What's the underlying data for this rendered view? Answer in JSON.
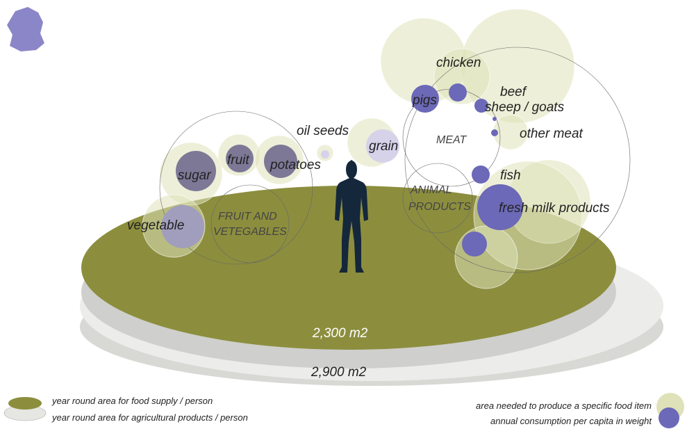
{
  "labels": {
    "chicken": "chicken",
    "pigs": "pigs",
    "beef": "beef",
    "sheep_goats": "sheep / goats",
    "meat": "MEAT",
    "other_meat": "other meat",
    "oil_seeds": "oil seeds",
    "grain": "grain",
    "fruit": "fruit",
    "sugar": "sugar",
    "potatoes": "potatoes",
    "fish": "fish",
    "animal_products": [
      "ANIMAL",
      "PRODUCTS"
    ],
    "fresh_milk_products": "fresh milk products",
    "fruit_and_vegetables": [
      "FRUIT AND",
      "VETEGABLES"
    ],
    "vegetable": "vegetable"
  },
  "areas": {
    "food_supply": "2,300 m2",
    "agricultural": "2,900 m2"
  },
  "legend": {
    "food_supply": "year round area for food supply / person",
    "agricultural": "year round area for agricultural products / person",
    "area_needed": "area needed to produce a specific food item",
    "consumption": "annual consumption per capita in weight"
  }
}
